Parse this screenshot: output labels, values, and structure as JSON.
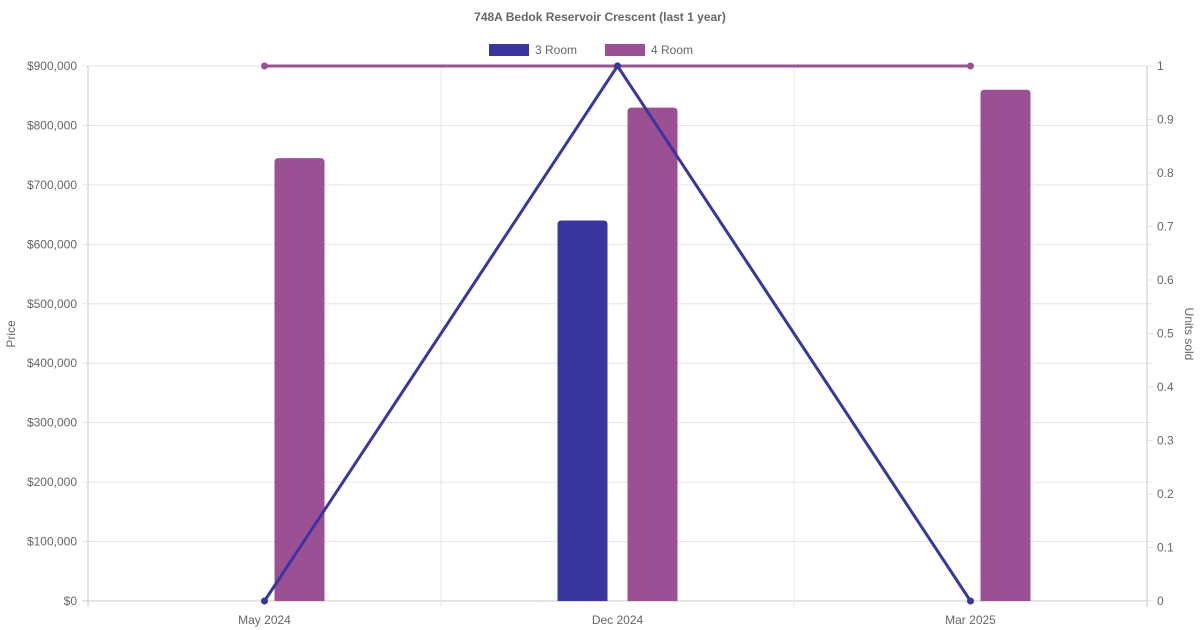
{
  "chart_data": {
    "type": "bar",
    "title": "748A Bedok Reservoir Crescent (last 1 year)",
    "categories": [
      "May 2024",
      "Dec 2024",
      "Mar 2025"
    ],
    "y_left": {
      "label": "Price",
      "ylim": [
        0,
        900000
      ],
      "ticks": [
        "$0",
        "$100,000",
        "$200,000",
        "$300,000",
        "$400,000",
        "$500,000",
        "$600,000",
        "$700,000",
        "$800,000",
        "$900,000"
      ]
    },
    "y_right": {
      "label": "Units sold",
      "ylim": [
        0,
        1
      ],
      "ticks": [
        "0",
        "0.1",
        "0.2",
        "0.3",
        "0.4",
        "0.5",
        "0.6",
        "0.7",
        "0.8",
        "0.9",
        "1"
      ]
    },
    "series": [
      {
        "name": "3 Room",
        "color": "#3a36a0",
        "bar_values": [
          0,
          640000,
          0
        ],
        "line_values": [
          0,
          1,
          0
        ]
      },
      {
        "name": "4 Room",
        "color": "#9c5094",
        "bar_values": [
          745000,
          830000,
          860000
        ],
        "line_values": [
          1,
          1,
          1
        ]
      }
    ],
    "legend_position": "top",
    "grid": true
  }
}
